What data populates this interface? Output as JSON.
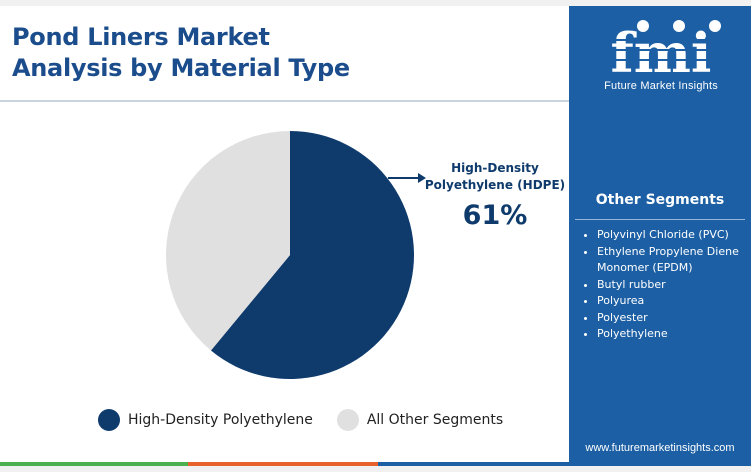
{
  "header": {
    "title_line1": "Pond Liners Market",
    "title_line2": "Analysis by Material Type"
  },
  "colors": {
    "hdpe": "#0e3a6c",
    "others": "#e0e0e0",
    "accent_blue": "#1c5fa4",
    "title": "#1b4c8c"
  },
  "chart_data": {
    "type": "pie",
    "title": "Pond Liners Market Analysis by Material Type",
    "slices": [
      {
        "name": "High-Density Polyethylene",
        "value": 61,
        "color": "#0e3a6c"
      },
      {
        "name": "All Other Segments",
        "value": 39,
        "color": "#e0e0e0"
      }
    ],
    "start_angle_deg": 0,
    "direction": "clockwise",
    "legend_position": "bottom"
  },
  "callout": {
    "label_line1": "High-Density",
    "label_line2": "Polyethylene (HDPE)",
    "value": "61%"
  },
  "legend": {
    "items": [
      {
        "label": "High-Density Polyethylene",
        "color": "#0e3a6c"
      },
      {
        "label": "All Other Segments",
        "color": "#e0e0e0"
      }
    ]
  },
  "sidebar": {
    "logo_text": "fmi",
    "logo_tagline": "Future Market Insights",
    "other_segments_title": "Other Segments",
    "other_segments": [
      "Polyvinyl Chloride (PVC)",
      "Ethylene Propylene Diene Monomer (EPDM)",
      "Butyl rubber",
      "Polyurea",
      "Polyester",
      "Polyethylene"
    ],
    "website": "www.futuremarketinsights.com"
  },
  "bottom_bar_colors": [
    "#4caf50",
    "#e8622c",
    "#1c5fa4"
  ]
}
